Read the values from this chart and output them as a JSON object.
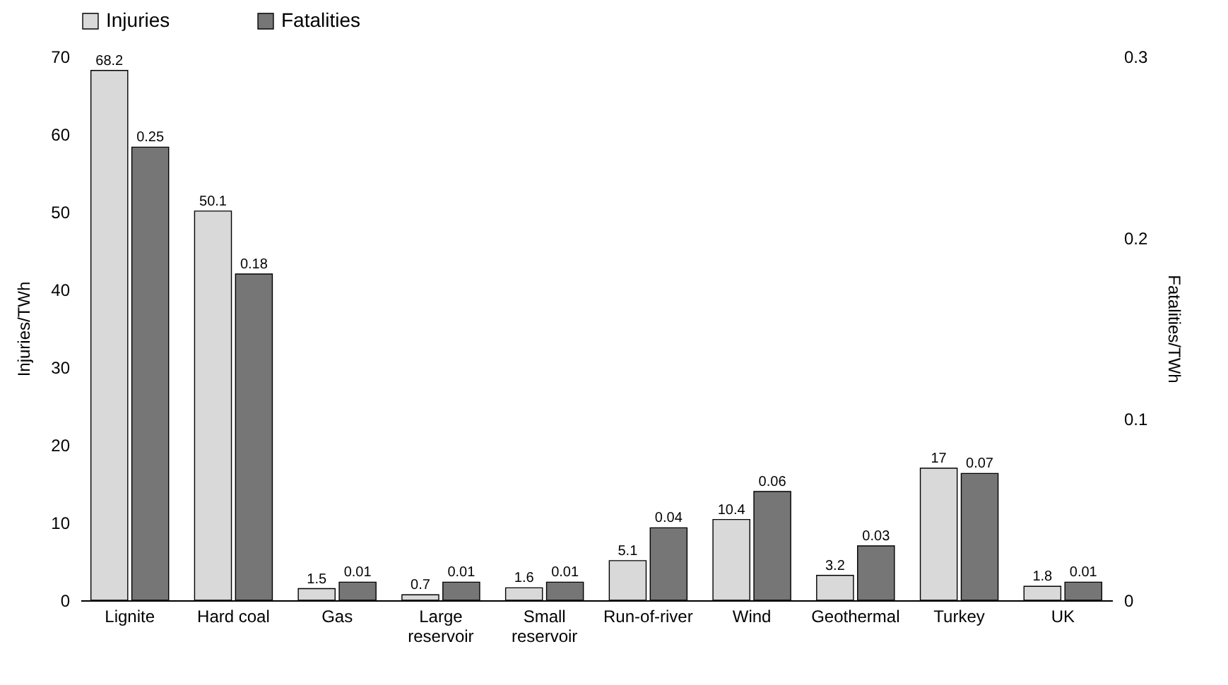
{
  "chart_data": {
    "type": "bar",
    "categories": [
      "Lignite",
      "Hard coal",
      "Gas",
      "Large reservoir",
      "Small reservoir",
      "Run-of-river",
      "Wind",
      "Geothermal",
      "Turkey",
      "UK"
    ],
    "series": [
      {
        "name": "Injuries",
        "color": "#d9d9d9",
        "values": [
          68.2,
          50.1,
          1.5,
          0.7,
          1.6,
          5.1,
          10.4,
          3.2,
          17,
          1.8
        ]
      },
      {
        "name": "Fatalities",
        "color": "#767676",
        "axis": "y2",
        "values": [
          0.25,
          0.18,
          0.01,
          0.01,
          0.01,
          0.04,
          0.06,
          0.03,
          0.07,
          0.01
        ]
      }
    ],
    "ylabel": "Injuries/TWh",
    "y2label": "Fatalities/TWh",
    "ylim": [
      0,
      70
    ],
    "yticks": [
      0,
      10,
      20,
      30,
      40,
      50,
      60,
      70
    ],
    "y2lim": [
      0,
      0.3
    ],
    "y2ticks": [
      0,
      0.1,
      0.2,
      0.3
    ],
    "data_labels": true,
    "grid": false,
    "legend": "top"
  }
}
